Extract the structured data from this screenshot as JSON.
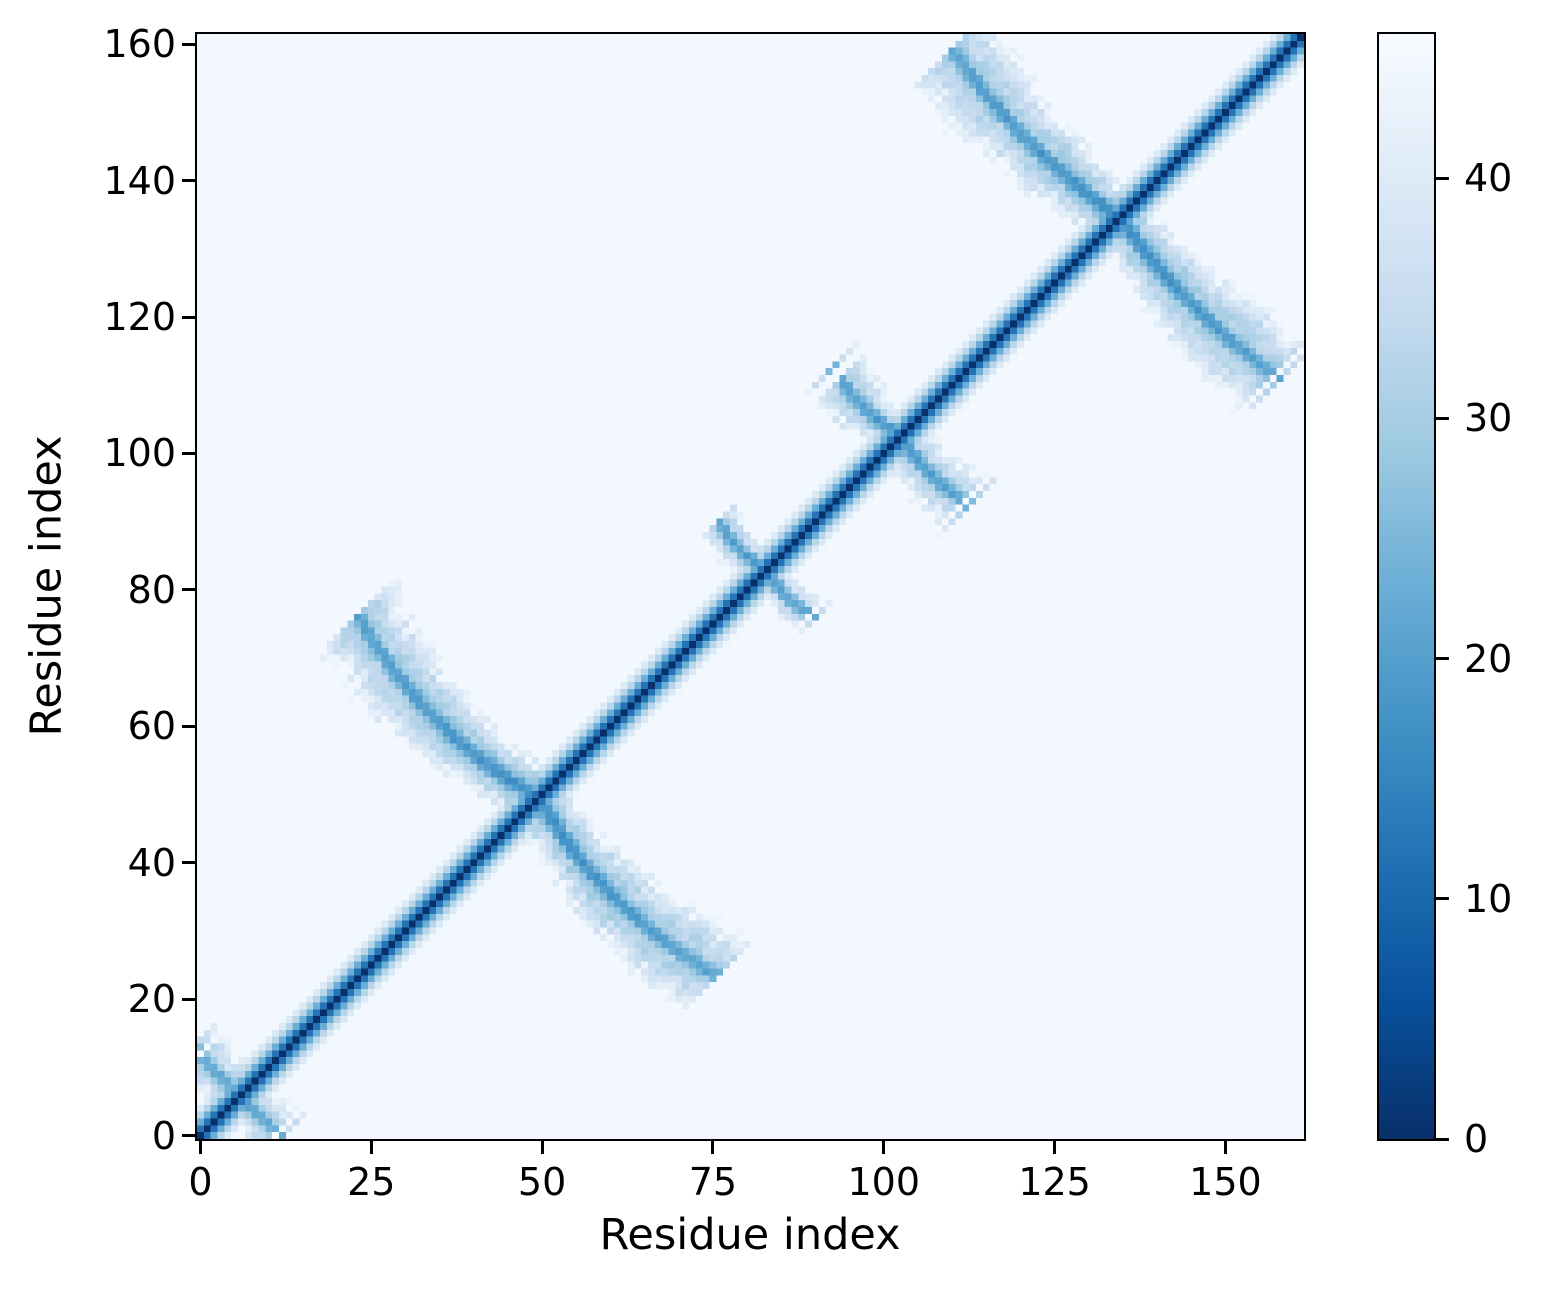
{
  "figure": {
    "background_color": "#ffffff",
    "description": "Residue-residue distance matrix heatmap with reversed Blues colormap and vertical colorbar"
  },
  "chart_data": {
    "type": "heatmap",
    "title": "",
    "xlabel": "Residue index",
    "ylabel": "Residue index",
    "n_residues": 162,
    "x_range": [
      -0.5,
      161.5
    ],
    "y_range": [
      -0.5,
      161.5
    ],
    "x_ticks": [
      0,
      25,
      50,
      75,
      100,
      125,
      150
    ],
    "y_ticks": [
      0,
      20,
      40,
      60,
      80,
      100,
      120,
      140,
      160
    ],
    "grid": false,
    "legend": "none",
    "colormap": {
      "name": "Blues_r",
      "stops": [
        "#f7fbff",
        "#deebf7",
        "#c6dbef",
        "#9ecae1",
        "#6baed6",
        "#4292c6",
        "#2171b5",
        "#08519c",
        "#08306b"
      ]
    },
    "colorbar": {
      "position": "right",
      "ticks": [
        0,
        10,
        20,
        30,
        40
      ],
      "vmin": 0,
      "vmax": 46
    },
    "matrix_model": {
      "comment": "Distance matrix generated from: dark main diagonal (backbone chain proximity, value 0 on diagonal fading to background over ~6 residues) plus antiparallel contact arms crossing the diagonal (X-shaped features). value = min(background, backbone, contacts).",
      "background_value": 45,
      "backbone": {
        "max_sep": 6
      },
      "antiparallel_contacts": [
        {
          "center": 6.0,
          "half_length": 6.5,
          "t_min": 0.5,
          "line_value": 20,
          "line_sigma": 1.6,
          "halo_value": 30,
          "halo_sigma": 3.4,
          "bow": 0.5,
          "fan": 0.7,
          "fade": 3,
          "edge_noise": 3
        },
        {
          "center": 49.5,
          "half_length": 26,
          "t_min": 1.0,
          "line_value": 16.5,
          "line_sigma": 1.7,
          "halo_value": 27,
          "halo_sigma": 4.2,
          "bow": 3.5,
          "fan": 0.8,
          "fade": 4,
          "edge_noise": 4
        },
        {
          "center": 83.0,
          "half_length": 7,
          "t_min": 0.5,
          "line_value": 19,
          "line_sigma": 1.4,
          "halo_value": 30,
          "halo_sigma": 2.6,
          "bow": 1.2,
          "fan": 0.5,
          "fade": 2,
          "edge_noise": 2
        },
        {
          "center": 102.5,
          "half_length": 9.5,
          "t_min": 0.5,
          "line_value": 18,
          "line_sigma": 1.5,
          "halo_value": 29,
          "halo_sigma": 3.0,
          "bow": 1.2,
          "fan": 1.1,
          "fade": 3,
          "edge_noise": 3
        },
        {
          "center": 134.5,
          "half_length": 24,
          "t_min": 1.0,
          "line_value": 16.5,
          "line_sigma": 1.7,
          "halo_value": 27.5,
          "halo_sigma": 3.8,
          "bow": 2.0,
          "fan": 1.2,
          "fade": 4,
          "edge_noise": 4
        }
      ]
    }
  }
}
